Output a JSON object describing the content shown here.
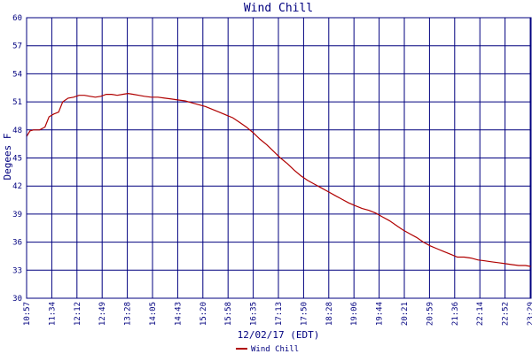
{
  "chart_data": {
    "type": "line",
    "title": "Wind Chill",
    "xlabel": "12/02/17 (EDT)",
    "ylabel": "Degees F",
    "ylim": [
      30,
      60
    ],
    "yticks": [
      30,
      33,
      36,
      39,
      42,
      45,
      48,
      51,
      54,
      57,
      60
    ],
    "xlim": [
      657,
      1379
    ],
    "xticks": [
      {
        "label": "10:57",
        "t": 657
      },
      {
        "label": "11:34",
        "t": 694
      },
      {
        "label": "12:12",
        "t": 732
      },
      {
        "label": "12:49",
        "t": 769
      },
      {
        "label": "13:28",
        "t": 808
      },
      {
        "label": "14:05",
        "t": 845
      },
      {
        "label": "14:43",
        "t": 883
      },
      {
        "label": "15:20",
        "t": 920
      },
      {
        "label": "15:58",
        "t": 958
      },
      {
        "label": "16:35",
        "t": 995
      },
      {
        "label": "17:13",
        "t": 1033
      },
      {
        "label": "17:50",
        "t": 1070
      },
      {
        "label": "18:28",
        "t": 1108
      },
      {
        "label": "19:06",
        "t": 1146
      },
      {
        "label": "19:44",
        "t": 1184
      },
      {
        "label": "20:21",
        "t": 1221
      },
      {
        "label": "20:59",
        "t": 1259
      },
      {
        "label": "21:36",
        "t": 1296
      },
      {
        "label": "22:14",
        "t": 1334
      },
      {
        "label": "22:52",
        "t": 1372
      },
      {
        "label": "23:29",
        "t": 1409
      }
    ],
    "grid": true,
    "legend": "bottom-center",
    "series": [
      {
        "name": "Wind Chill",
        "color": "#b00000",
        "x": [
          657,
          662,
          667,
          676,
          684,
          690,
          697,
          704,
          710,
          718,
          726,
          734,
          742,
          750,
          758,
          766,
          774,
          782,
          790,
          798,
          806,
          814,
          822,
          830,
          840,
          850,
          860,
          870,
          880,
          890,
          900,
          910,
          920,
          930,
          940,
          950,
          960,
          970,
          980,
          990,
          1000,
          1010,
          1020,
          1030,
          1040,
          1050,
          1060,
          1070,
          1080,
          1090,
          1100,
          1110,
          1120,
          1130,
          1140,
          1150,
          1160,
          1170,
          1180,
          1190,
          1200,
          1210,
          1220,
          1230,
          1240,
          1250,
          1260,
          1270,
          1280,
          1290,
          1300,
          1310,
          1320,
          1330,
          1340,
          1350,
          1360,
          1370,
          1380,
          1390,
          1400,
          1409
        ],
        "values": [
          47.3,
          47.9,
          48.0,
          48.0,
          48.3,
          49.4,
          49.7,
          49.9,
          51.0,
          51.4,
          51.5,
          51.7,
          51.7,
          51.6,
          51.5,
          51.6,
          51.8,
          51.8,
          51.7,
          51.8,
          51.9,
          51.8,
          51.7,
          51.6,
          51.5,
          51.5,
          51.4,
          51.3,
          51.2,
          51.1,
          50.9,
          50.7,
          50.5,
          50.2,
          49.9,
          49.6,
          49.3,
          48.8,
          48.3,
          47.7,
          47.0,
          46.4,
          45.7,
          45.0,
          44.4,
          43.7,
          43.1,
          42.6,
          42.2,
          41.8,
          41.4,
          41.0,
          40.6,
          40.2,
          39.9,
          39.6,
          39.4,
          39.1,
          38.7,
          38.3,
          37.8,
          37.3,
          36.9,
          36.5,
          36.0,
          35.6,
          35.3,
          35.0,
          34.7,
          34.4,
          34.4,
          34.3,
          34.1,
          34.0,
          33.9,
          33.8,
          33.7,
          33.6,
          33.5,
          33.5,
          33.4,
          33.4
        ]
      }
    ]
  }
}
